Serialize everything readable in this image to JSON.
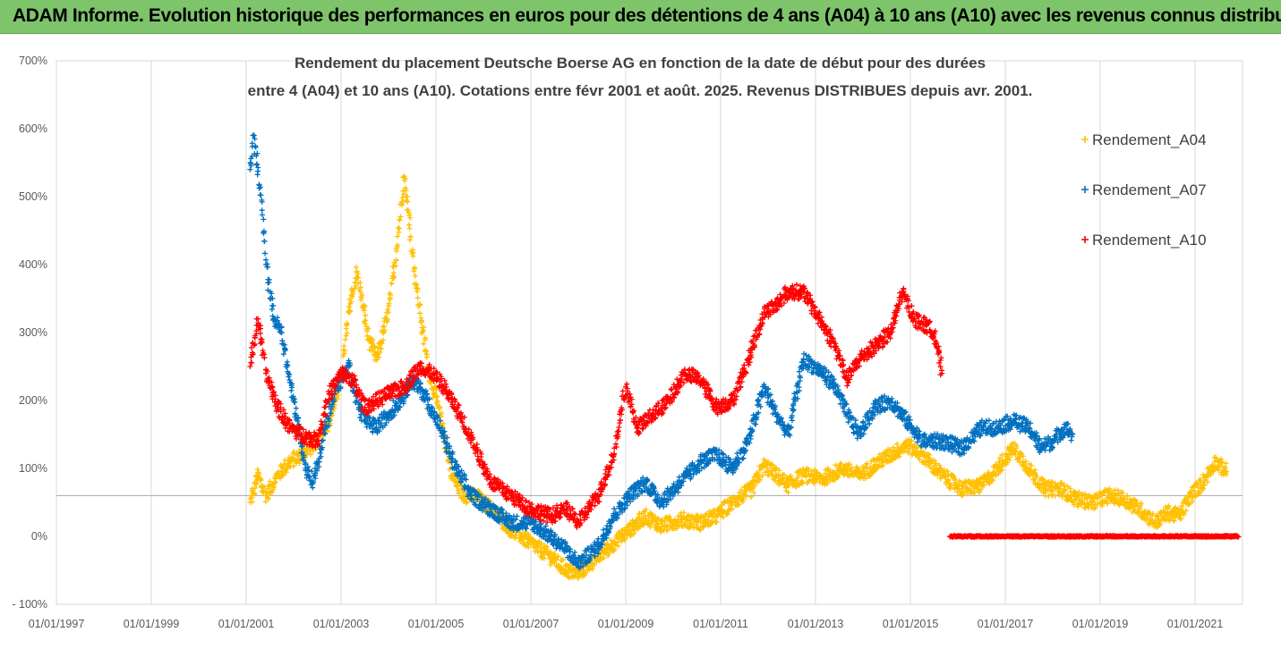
{
  "banner": {
    "title": "ADAM Informe. Evolution historique des performances en euros pour des détentions de 4 ans (A04) à 10 ans (A10) avec les revenus connus distribués"
  },
  "chart_data": {
    "type": "scatter",
    "title_line1": "Rendement du placement Deutsche Boerse AG en fonction de la date de début pour des durées",
    "title_line2": "entre 4 (A04) et 10 ans (A10). Cotations entre févr 2001 et août. 2025. Revenus DISTRIBUES depuis avr. 2001.",
    "xlabel": "",
    "ylabel": "",
    "x_ticks": [
      "01/01/1997",
      "01/01/1999",
      "01/01/2001",
      "01/01/2003",
      "01/01/2005",
      "01/01/2007",
      "01/01/2009",
      "01/01/2011",
      "01/01/2013",
      "01/01/2015",
      "01/01/2017",
      "01/01/2019",
      "01/01/2021"
    ],
    "y_ticks": [
      "700%",
      "600%",
      "500%",
      "400%",
      "300%",
      "200%",
      "100%",
      "0%",
      "- 100%"
    ],
    "xlim": [
      "01/01/1997",
      "01/01/2022"
    ],
    "ylim": [
      -100,
      700
    ],
    "reference_line_y": 60,
    "grid": "vertical",
    "legend_position": "top-right",
    "marker": "+",
    "series": [
      {
        "name": "Rendement_A04",
        "color": "#ffc000",
        "points": [
          [
            "2001-02",
            50
          ],
          [
            "2001-04",
            90
          ],
          [
            "2001-06",
            60
          ],
          [
            "2001-09",
            90
          ],
          [
            "2001-12",
            110
          ],
          [
            "2002-03",
            120
          ],
          [
            "2002-07",
            140
          ],
          [
            "2002-10",
            170
          ],
          [
            "2003-01",
            230
          ],
          [
            "2003-03",
            330
          ],
          [
            "2003-05",
            390
          ],
          [
            "2003-08",
            290
          ],
          [
            "2003-10",
            260
          ],
          [
            "2004-01",
            330
          ],
          [
            "2004-03",
            420
          ],
          [
            "2004-05",
            530
          ],
          [
            "2004-06",
            480
          ],
          [
            "2004-08",
            370
          ],
          [
            "2004-11",
            250
          ],
          [
            "2005-02",
            180
          ],
          [
            "2005-05",
            90
          ],
          [
            "2005-08",
            60
          ],
          [
            "2005-11",
            60
          ],
          [
            "2006-03",
            40
          ],
          [
            "2006-08",
            10
          ],
          [
            "2007-01",
            -10
          ],
          [
            "2007-06",
            -30
          ],
          [
            "2007-10",
            -50
          ],
          [
            "2008-01",
            -55
          ],
          [
            "2008-06",
            -30
          ],
          [
            "2008-10",
            -10
          ],
          [
            "2009-02",
            10
          ],
          [
            "2009-06",
            30
          ],
          [
            "2009-10",
            15
          ],
          [
            "2010-03",
            25
          ],
          [
            "2010-08",
            20
          ],
          [
            "2010-12",
            30
          ],
          [
            "2011-04",
            50
          ],
          [
            "2011-09",
            70
          ],
          [
            "2011-12",
            105
          ],
          [
            "2012-03",
            90
          ],
          [
            "2012-06",
            75
          ],
          [
            "2012-10",
            90
          ],
          [
            "2013-03",
            85
          ],
          [
            "2013-08",
            100
          ],
          [
            "2013-12",
            90
          ],
          [
            "2014-04",
            105
          ],
          [
            "2014-08",
            120
          ],
          [
            "2014-12",
            135
          ],
          [
            "2015-04",
            120
          ],
          [
            "2015-09",
            90
          ],
          [
            "2016-02",
            70
          ],
          [
            "2016-07",
            75
          ],
          [
            "2016-11",
            100
          ],
          [
            "2017-03",
            130
          ],
          [
            "2017-07",
            100
          ],
          [
            "2017-11",
            70
          ],
          [
            "2018-03",
            70
          ],
          [
            "2018-07",
            55
          ],
          [
            "2018-11",
            50
          ],
          [
            "2019-03",
            60
          ],
          [
            "2019-07",
            55
          ],
          [
            "2019-11",
            40
          ],
          [
            "2020-03",
            20
          ],
          [
            "2020-06",
            35
          ],
          [
            "2020-09",
            30
          ],
          [
            "2020-12",
            60
          ],
          [
            "2021-03",
            80
          ],
          [
            "2021-06",
            110
          ],
          [
            "2021-09",
            95
          ]
        ]
      },
      {
        "name": "Rendement_A07",
        "color": "#0070c0",
        "points": [
          [
            "2001-02",
            540
          ],
          [
            "2001-03",
            590
          ],
          [
            "2001-05",
            480
          ],
          [
            "2001-06",
            400
          ],
          [
            "2001-08",
            320
          ],
          [
            "2001-10",
            300
          ],
          [
            "2001-12",
            230
          ],
          [
            "2002-02",
            170
          ],
          [
            "2002-04",
            100
          ],
          [
            "2002-06",
            80
          ],
          [
            "2002-09",
            160
          ],
          [
            "2002-12",
            220
          ],
          [
            "2003-03",
            250
          ],
          [
            "2003-05",
            200
          ],
          [
            "2003-07",
            170
          ],
          [
            "2003-10",
            160
          ],
          [
            "2004-01",
            180
          ],
          [
            "2004-04",
            200
          ],
          [
            "2004-07",
            230
          ],
          [
            "2004-10",
            210
          ],
          [
            "2005-02",
            160
          ],
          [
            "2005-06",
            100
          ],
          [
            "2005-10",
            60
          ],
          [
            "2006-03",
            40
          ],
          [
            "2006-08",
            20
          ],
          [
            "2007-01",
            20
          ],
          [
            "2007-06",
            0
          ],
          [
            "2007-10",
            -20
          ],
          [
            "2008-01",
            -40
          ],
          [
            "2008-06",
            -15
          ],
          [
            "2008-10",
            30
          ],
          [
            "2009-02",
            60
          ],
          [
            "2009-06",
            80
          ],
          [
            "2009-10",
            50
          ],
          [
            "2010-03",
            80
          ],
          [
            "2010-08",
            110
          ],
          [
            "2010-12",
            120
          ],
          [
            "2011-04",
            100
          ],
          [
            "2011-08",
            140
          ],
          [
            "2011-12",
            220
          ],
          [
            "2012-03",
            180
          ],
          [
            "2012-06",
            150
          ],
          [
            "2012-10",
            260
          ],
          [
            "2013-03",
            240
          ],
          [
            "2013-06",
            220
          ],
          [
            "2013-09",
            180
          ],
          [
            "2013-12",
            150
          ],
          [
            "2014-04",
            190
          ],
          [
            "2014-08",
            200
          ],
          [
            "2014-12",
            170
          ],
          [
            "2015-04",
            140
          ],
          [
            "2015-09",
            140
          ],
          [
            "2016-02",
            130
          ],
          [
            "2016-07",
            160
          ],
          [
            "2016-11",
            160
          ],
          [
            "2017-03",
            170
          ],
          [
            "2017-07",
            160
          ],
          [
            "2017-10",
            130
          ],
          [
            "2018-01",
            140
          ],
          [
            "2018-04",
            160
          ],
          [
            "2018-06",
            150
          ]
        ]
      },
      {
        "name": "Rendement_A10",
        "color": "#ff0000",
        "points": [
          [
            "2001-02",
            250
          ],
          [
            "2001-04",
            320
          ],
          [
            "2001-06",
            240
          ],
          [
            "2001-09",
            190
          ],
          [
            "2001-12",
            160
          ],
          [
            "2002-03",
            150
          ],
          [
            "2002-07",
            140
          ],
          [
            "2002-10",
            210
          ],
          [
            "2003-01",
            240
          ],
          [
            "2003-04",
            230
          ],
          [
            "2003-07",
            190
          ],
          [
            "2003-10",
            200
          ],
          [
            "2004-01",
            210
          ],
          [
            "2004-05",
            220
          ],
          [
            "2004-09",
            250
          ],
          [
            "2004-12",
            240
          ],
          [
            "2005-03",
            220
          ],
          [
            "2005-07",
            180
          ],
          [
            "2005-11",
            130
          ],
          [
            "2006-03",
            80
          ],
          [
            "2006-08",
            60
          ],
          [
            "2007-01",
            40
          ],
          [
            "2007-06",
            30
          ],
          [
            "2007-10",
            40
          ],
          [
            "2008-01",
            20
          ],
          [
            "2008-06",
            60
          ],
          [
            "2008-10",
            120
          ],
          [
            "2009-01",
            220
          ],
          [
            "2009-04",
            160
          ],
          [
            "2009-08",
            180
          ],
          [
            "2009-12",
            200
          ],
          [
            "2010-04",
            240
          ],
          [
            "2010-08",
            230
          ],
          [
            "2010-12",
            190
          ],
          [
            "2011-04",
            200
          ],
          [
            "2011-08",
            260
          ],
          [
            "2011-12",
            330
          ],
          [
            "2012-03",
            340
          ],
          [
            "2012-06",
            360
          ],
          [
            "2012-10",
            360
          ],
          [
            "2013-02",
            320
          ],
          [
            "2013-06",
            280
          ],
          [
            "2013-09",
            230
          ],
          [
            "2013-12",
            260
          ],
          [
            "2014-04",
            280
          ],
          [
            "2014-08",
            300
          ],
          [
            "2014-11",
            360
          ],
          [
            "2015-02",
            320
          ],
          [
            "2015-05",
            310
          ],
          [
            "2015-07",
            300
          ],
          [
            "2015-09",
            240
          ]
        ],
        "flat_segment": {
          "from": "2015-11",
          "to": "2021-12",
          "value": 0
        }
      }
    ]
  }
}
